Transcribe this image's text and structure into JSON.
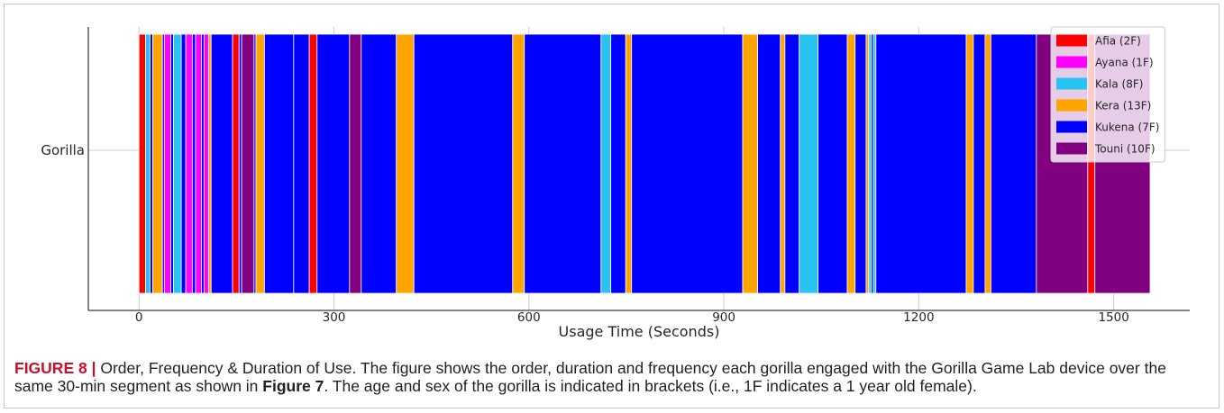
{
  "figure": {
    "label": "FIGURE 8 |",
    "label_color": "#c8102e",
    "title": "Order, Frequency & Duration of Use.",
    "caption_text_1": "The figure shows the order, duration and frequency each gorilla engaged with the Gorilla Game Lab device over the",
    "caption_text_2": "same 30-min segment as shown in",
    "figure_ref": "Figure 7",
    "caption_text_3": ". The age and sex of the gorilla is indicated in brackets (i.e., 1F indicates a 1 year old female)."
  },
  "chart_data": {
    "type": "bar",
    "orientation": "horizontal",
    "categories": [
      "Gorilla"
    ],
    "xlabel": "Usage Time (Seconds)",
    "ylabel": "",
    "xlim": [
      -78,
      1617
    ],
    "xticks": [
      0,
      300,
      600,
      900,
      1200,
      1500
    ],
    "grid": true,
    "legend_position": "top-right",
    "series": [
      {
        "name": "Afia (2F)",
        "color": "#ff0000"
      },
      {
        "name": "Ayana (1F)",
        "color": "#ff00ff"
      },
      {
        "name": "Kala (8F)",
        "color": "#29c3f2"
      },
      {
        "name": "Kera (13F)",
        "color": "#ffa500"
      },
      {
        "name": "Kukena (7F)",
        "color": "#0000ff"
      },
      {
        "name": "Touni (10F)",
        "color": "#800080"
      }
    ],
    "segments": [
      {
        "gorilla": "Afia (2F)",
        "start": 0,
        "end": 10
      },
      {
        "gorilla": "Kala (8F)",
        "start": 10,
        "end": 17
      },
      {
        "gorilla": "Kukena (7F)",
        "start": 17,
        "end": 21
      },
      {
        "gorilla": "Kera (13F)",
        "start": 21,
        "end": 36
      },
      {
        "gorilla": "Kukena (7F)",
        "start": 36,
        "end": 39
      },
      {
        "gorilla": "Ayana (1F)",
        "start": 39,
        "end": 49
      },
      {
        "gorilla": "Kukena (7F)",
        "start": 49,
        "end": 53
      },
      {
        "gorilla": "Kala (8F)",
        "start": 53,
        "end": 65
      },
      {
        "gorilla": "Kukena (7F)",
        "start": 65,
        "end": 72
      },
      {
        "gorilla": "Ayana (1F)",
        "start": 72,
        "end": 82
      },
      {
        "gorilla": "Kukena (7F)",
        "start": 82,
        "end": 87
      },
      {
        "gorilla": "Ayana (1F)",
        "start": 87,
        "end": 96
      },
      {
        "gorilla": "Kukena (7F)",
        "start": 96,
        "end": 100
      },
      {
        "gorilla": "Ayana (1F)",
        "start": 100,
        "end": 107
      },
      {
        "gorilla": "Kera (13F)",
        "start": 107,
        "end": 111
      },
      {
        "gorilla": "Kukena (7F)",
        "start": 111,
        "end": 144
      },
      {
        "gorilla": "Afia (2F)",
        "start": 144,
        "end": 154
      },
      {
        "gorilla": "Kukena (7F)",
        "start": 154,
        "end": 158
      },
      {
        "gorilla": "Touni (10F)",
        "start": 158,
        "end": 177
      },
      {
        "gorilla": "Kukena (7F)",
        "start": 177,
        "end": 180
      },
      {
        "gorilla": "Kera (13F)",
        "start": 180,
        "end": 193
      },
      {
        "gorilla": "Kukena (7F)",
        "start": 193,
        "end": 238
      },
      {
        "gorilla": "Kukena (7F)",
        "start": 238,
        "end": 262
      },
      {
        "gorilla": "Afia (2F)",
        "start": 262,
        "end": 274
      },
      {
        "gorilla": "Kukena (7F)",
        "start": 274,
        "end": 324
      },
      {
        "gorilla": "Touni (10F)",
        "start": 324,
        "end": 342
      },
      {
        "gorilla": "Kukena (7F)",
        "start": 342,
        "end": 396
      },
      {
        "gorilla": "Kera (13F)",
        "start": 396,
        "end": 423
      },
      {
        "gorilla": "Kukena (7F)",
        "start": 423,
        "end": 575
      },
      {
        "gorilla": "Kera (13F)",
        "start": 575,
        "end": 593
      },
      {
        "gorilla": "Kukena (7F)",
        "start": 593,
        "end": 711
      },
      {
        "gorilla": "Kala (8F)",
        "start": 711,
        "end": 726
      },
      {
        "gorilla": "Kukena (7F)",
        "start": 726,
        "end": 749
      },
      {
        "gorilla": "Kera (13F)",
        "start": 749,
        "end": 758
      },
      {
        "gorilla": "Kukena (7F)",
        "start": 758,
        "end": 929
      },
      {
        "gorilla": "Kera (13F)",
        "start": 929,
        "end": 952
      },
      {
        "gorilla": "Kukena (7F)",
        "start": 952,
        "end": 987
      },
      {
        "gorilla": "Kera (13F)",
        "start": 987,
        "end": 994
      },
      {
        "gorilla": "Kukena (7F)",
        "start": 994,
        "end": 1016
      },
      {
        "gorilla": "Kala (8F)",
        "start": 1016,
        "end": 1045
      },
      {
        "gorilla": "Kukena (7F)",
        "start": 1045,
        "end": 1090
      },
      {
        "gorilla": "Kera (13F)",
        "start": 1090,
        "end": 1102
      },
      {
        "gorilla": "Kukena (7F)",
        "start": 1102,
        "end": 1119
      },
      {
        "gorilla": "Kera (13F)",
        "start": 1119,
        "end": 1123
      },
      {
        "gorilla": "Kala (8F)",
        "start": 1123,
        "end": 1127
      },
      {
        "gorilla": "Kukena (7F)",
        "start": 1127,
        "end": 1130
      },
      {
        "gorilla": "Kala (8F)",
        "start": 1130,
        "end": 1134
      },
      {
        "gorilla": "Kukena (7F)",
        "start": 1134,
        "end": 1273
      },
      {
        "gorilla": "Kera (13F)",
        "start": 1273,
        "end": 1284
      },
      {
        "gorilla": "Kukena (7F)",
        "start": 1284,
        "end": 1302
      },
      {
        "gorilla": "Kera (13F)",
        "start": 1302,
        "end": 1311
      },
      {
        "gorilla": "Kukena (7F)",
        "start": 1311,
        "end": 1381
      },
      {
        "gorilla": "Touni (10F)",
        "start": 1381,
        "end": 1460
      },
      {
        "gorilla": "Afia (2F)",
        "start": 1460,
        "end": 1471
      },
      {
        "gorilla": "Touni (10F)",
        "start": 1471,
        "end": 1556
      }
    ]
  }
}
